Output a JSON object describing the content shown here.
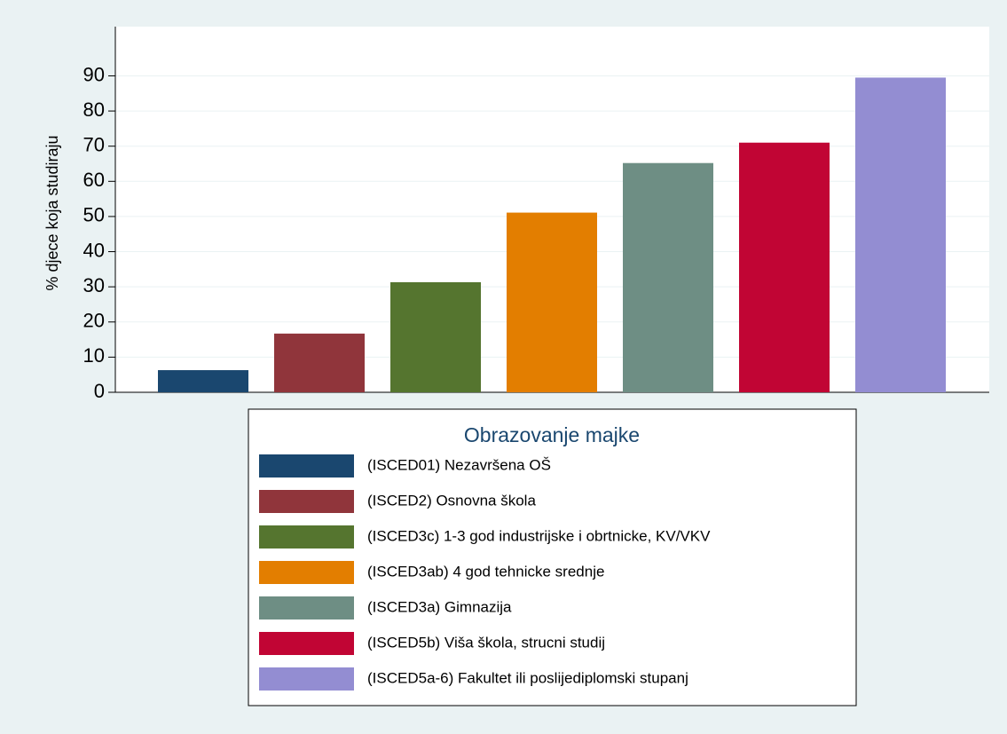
{
  "chart_data": {
    "type": "bar",
    "ylabel": "% djece koja studiraju",
    "legend_title": "Obrazovanje majke",
    "legend_position": "bottom",
    "grid": true,
    "ylim": [
      0,
      104
    ],
    "yticks": [
      0,
      10,
      20,
      30,
      40,
      50,
      60,
      70,
      80,
      90
    ],
    "series": [
      {
        "name": "(ISCED01) Nezavršena OŠ",
        "color": "#1a476f",
        "values": [
          6.3
        ]
      },
      {
        "name": "(ISCED2) Osnovna škola",
        "color": "#90353b",
        "values": [
          16.7
        ]
      },
      {
        "name": "(ISCED3c) 1-3 god industrijske i obrtnicke, KV/VKV",
        "color": "#55752f",
        "values": [
          31.3
        ]
      },
      {
        "name": "(ISCED3ab) 4 god tehnicke srednje",
        "color": "#e37e00",
        "values": [
          51.1
        ]
      },
      {
        "name": "(ISCED3a) Gimnazija",
        "color": "#6e8e84",
        "values": [
          65.2
        ]
      },
      {
        "name": "(ISCED5b) Viša škola, strucni studij",
        "color": "#c10534",
        "values": [
          71.0
        ]
      },
      {
        "name": "(ISCED5a-6) Fakultet ili poslijediplomski stupanj",
        "color": "#938dd2",
        "values": [
          89.5
        ]
      }
    ]
  }
}
